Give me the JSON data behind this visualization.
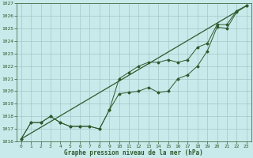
{
  "background_color": "#c8eaea",
  "grid_color": "#a0c8c8",
  "line_color": "#2d5a2d",
  "xlabel": "Graphe pression niveau de la mer (hPa)",
  "xlim": [
    -0.5,
    23.5
  ],
  "ylim": [
    1016,
    1027
  ],
  "yticks": [
    1016,
    1017,
    1018,
    1019,
    1020,
    1021,
    1022,
    1023,
    1024,
    1025,
    1026,
    1027
  ],
  "xticks": [
    0,
    1,
    2,
    3,
    4,
    5,
    6,
    7,
    8,
    9,
    10,
    11,
    12,
    13,
    14,
    15,
    16,
    17,
    18,
    19,
    20,
    21,
    22,
    23
  ],
  "line1_x": [
    0,
    1,
    2,
    3,
    4,
    5,
    6,
    7,
    8,
    9,
    10,
    11,
    12,
    13,
    14,
    15,
    16,
    17,
    18,
    19,
    20,
    21,
    22,
    23
  ],
  "line1_y": [
    1016.2,
    1017.5,
    1017.5,
    1018.0,
    1017.5,
    1017.2,
    1017.2,
    1017.2,
    1017.0,
    1018.5,
    1019.8,
    1019.9,
    1020.0,
    1020.3,
    1019.9,
    1020.0,
    1021.0,
    1021.3,
    1022.0,
    1023.2,
    1025.1,
    1025.0,
    1026.3,
    1026.8
  ],
  "line2_x": [
    0,
    1,
    2,
    3,
    4,
    5,
    6,
    7,
    8,
    9,
    10,
    11,
    12,
    13,
    14,
    15,
    16,
    17,
    18,
    19,
    20,
    21,
    22,
    23
  ],
  "line2_y": [
    1016.2,
    1017.5,
    1017.5,
    1018.0,
    1017.5,
    1017.2,
    1017.2,
    1017.2,
    1017.0,
    1018.5,
    1021.0,
    1021.5,
    1022.0,
    1022.3,
    1022.3,
    1022.5,
    1022.3,
    1022.5,
    1023.5,
    1023.8,
    1025.3,
    1025.3,
    1026.4,
    1026.8
  ],
  "line3_x": [
    0,
    23
  ],
  "line3_y": [
    1016.2,
    1026.8
  ],
  "xlabel_fontsize": 5.5,
  "tick_fontsize": 4.5
}
